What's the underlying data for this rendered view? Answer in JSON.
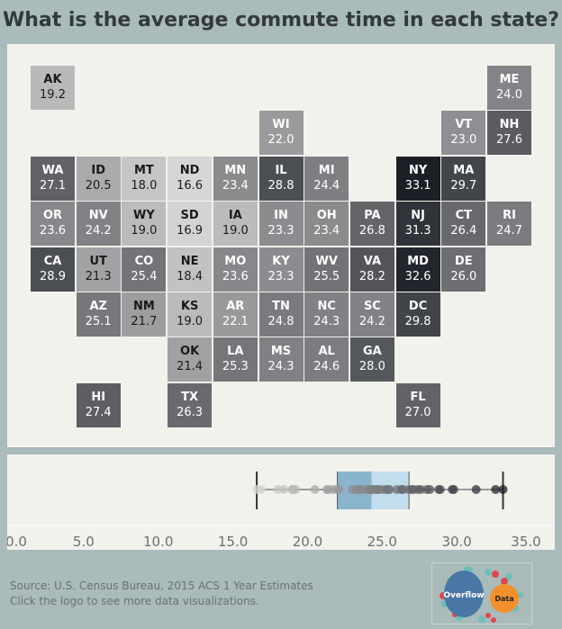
{
  "title": "What is the average commute time in each state?",
  "footer": {
    "source": "Source: U.S. Census Bureau, 2015 ACS 1 Year Estimates",
    "note": "Click the logo to see more data visualizations.",
    "logo_left": "Overflow",
    "logo_right": "Data"
  },
  "chart_data": {
    "type": "tile-map with box plot",
    "states": [
      {
        "abbr": "AK",
        "value": 19.2
      },
      {
        "abbr": "ME",
        "value": 24.0
      },
      {
        "abbr": "WI",
        "value": 22.0
      },
      {
        "abbr": "VT",
        "value": 23.0
      },
      {
        "abbr": "NH",
        "value": 27.6
      },
      {
        "abbr": "WA",
        "value": 27.1
      },
      {
        "abbr": "ID",
        "value": 20.5
      },
      {
        "abbr": "MT",
        "value": 18.0
      },
      {
        "abbr": "ND",
        "value": 16.6
      },
      {
        "abbr": "MN",
        "value": 23.4
      },
      {
        "abbr": "IL",
        "value": 28.8
      },
      {
        "abbr": "MI",
        "value": 24.4
      },
      {
        "abbr": "NY",
        "value": 33.1
      },
      {
        "abbr": "MA",
        "value": 29.7
      },
      {
        "abbr": "OR",
        "value": 23.6
      },
      {
        "abbr": "NV",
        "value": 24.2
      },
      {
        "abbr": "WY",
        "value": 19.0
      },
      {
        "abbr": "SD",
        "value": 16.9
      },
      {
        "abbr": "IA",
        "value": 19.0
      },
      {
        "abbr": "IN",
        "value": 23.3
      },
      {
        "abbr": "OH",
        "value": 23.4
      },
      {
        "abbr": "PA",
        "value": 26.8
      },
      {
        "abbr": "NJ",
        "value": 31.3
      },
      {
        "abbr": "CT",
        "value": 26.4
      },
      {
        "abbr": "RI",
        "value": 24.7
      },
      {
        "abbr": "CA",
        "value": 28.9
      },
      {
        "abbr": "UT",
        "value": 21.3
      },
      {
        "abbr": "CO",
        "value": 25.4
      },
      {
        "abbr": "NE",
        "value": 18.4
      },
      {
        "abbr": "MO",
        "value": 23.6
      },
      {
        "abbr": "KY",
        "value": 23.3
      },
      {
        "abbr": "WV",
        "value": 25.5
      },
      {
        "abbr": "VA",
        "value": 28.2
      },
      {
        "abbr": "MD",
        "value": 32.6
      },
      {
        "abbr": "DE",
        "value": 26.0
      },
      {
        "abbr": "AZ",
        "value": 25.1
      },
      {
        "abbr": "NM",
        "value": 21.7
      },
      {
        "abbr": "KS",
        "value": 19.0
      },
      {
        "abbr": "AR",
        "value": 22.1
      },
      {
        "abbr": "TN",
        "value": 24.8
      },
      {
        "abbr": "NC",
        "value": 24.3
      },
      {
        "abbr": "SC",
        "value": 24.2
      },
      {
        "abbr": "DC",
        "value": 29.8
      },
      {
        "abbr": "OK",
        "value": 21.4
      },
      {
        "abbr": "LA",
        "value": 25.3
      },
      {
        "abbr": "MS",
        "value": 24.3
      },
      {
        "abbr": "AL",
        "value": 24.6
      },
      {
        "abbr": "GA",
        "value": 28.0
      },
      {
        "abbr": "HI",
        "value": 27.4
      },
      {
        "abbr": "TX",
        "value": 26.3
      },
      {
        "abbr": "FL",
        "value": 27.0
      }
    ],
    "axis": {
      "ticks": [
        "0.0",
        "5.0",
        "10.0",
        "15.0",
        "20.0",
        "25.0",
        "30.0",
        "35.0"
      ],
      "range": [
        0,
        35
      ]
    },
    "box": {
      "min": 16.6,
      "q1": 22.0,
      "median": 24.3,
      "q3": 26.8,
      "max": 33.1,
      "lower_color": "#8ab4cc",
      "upper_color": "#c2dded"
    },
    "color_scale": {
      "low": "#d6d6d6",
      "high": "#1c1f26"
    }
  }
}
